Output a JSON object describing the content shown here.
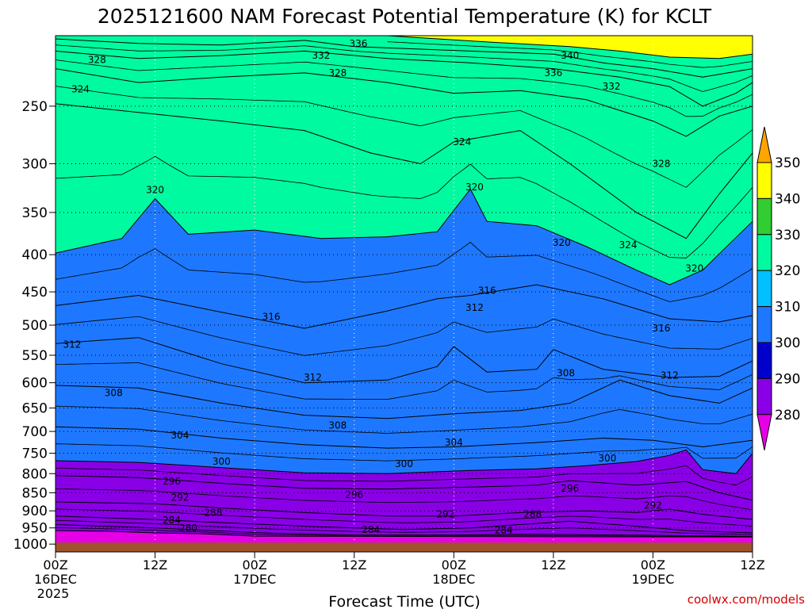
{
  "chart_data": {
    "type": "contour",
    "title": "2025121600 NAM Forecast Potential Temperature (K) for KCLT",
    "xlabel": "Forecast Time (UTC)",
    "ylabel": "",
    "credit": "coolwx.com/models",
    "y_pressure_levels_hpa": [
      250,
      300,
      350,
      400,
      450,
      500,
      550,
      600,
      650,
      700,
      750,
      800,
      850,
      900,
      950,
      1000
    ],
    "ylim_hpa": [
      200,
      1025
    ],
    "y_scale": "log-pressure",
    "x_ticks": [
      {
        "label": "00Z",
        "sub": "16DEC",
        "sub2": "2025",
        "hour": 0
      },
      {
        "label": "12Z",
        "sub": "",
        "sub2": "",
        "hour": 12
      },
      {
        "label": "00Z",
        "sub": "17DEC",
        "sub2": "",
        "hour": 24
      },
      {
        "label": "12Z",
        "sub": "",
        "sub2": "",
        "hour": 36
      },
      {
        "label": "00Z",
        "sub": "18DEC",
        "sub2": "",
        "hour": 48
      },
      {
        "label": "12Z",
        "sub": "",
        "sub2": "",
        "hour": 60
      },
      {
        "label": "00Z",
        "sub": "19DEC",
        "sub2": "",
        "hour": 72
      },
      {
        "label": "12Z",
        "sub": "",
        "sub2": "",
        "hour": 84
      }
    ],
    "xlim_hours": [
      0,
      84
    ],
    "grid": true,
    "colorbar": {
      "ticks": [
        "280",
        "290",
        "300",
        "310",
        "320",
        "330",
        "340",
        "350"
      ],
      "bins": [
        {
          "from": 270,
          "to": 280,
          "color": "#e600e6"
        },
        {
          "from": 280,
          "to": 290,
          "color": "#8a00e6"
        },
        {
          "from": 290,
          "to": 300,
          "color": "#0000cd"
        },
        {
          "from": 300,
          "to": 310,
          "color": "#1e78ff"
        },
        {
          "from": 310,
          "to": 320,
          "color": "#00c0ff"
        },
        {
          "from": 320,
          "to": 330,
          "color": "#00faa0"
        },
        {
          "from": 330,
          "to": 340,
          "color": "#32cd32"
        },
        {
          "from": 340,
          "to": 350,
          "color": "#ffff00"
        },
        {
          "from": 350,
          "to": 360,
          "color": "#ffa500"
        }
      ],
      "placement": "right"
    },
    "ground_color": "#a0522d",
    "fill_levels": [
      280,
      290,
      300,
      310,
      320,
      330,
      340,
      350
    ],
    "isotherms": [
      {
        "theta": 280,
        "label": "280",
        "pts": [
          [
            0,
            958
          ],
          [
            6,
            960
          ],
          [
            12,
            965
          ],
          [
            18,
            968
          ],
          [
            24,
            975
          ],
          [
            84,
            978
          ]
        ]
      },
      {
        "theta": 284,
        "label": "284",
        "pts": [
          [
            0,
            940
          ],
          [
            12,
            950
          ],
          [
            18,
            957
          ],
          [
            26,
            966
          ],
          [
            36,
            972
          ],
          [
            48,
            972
          ],
          [
            56,
            969
          ],
          [
            70,
            972
          ],
          [
            84,
            976
          ]
        ]
      },
      {
        "theta": 288,
        "label": "288",
        "pts": [
          [
            0,
            915
          ],
          [
            12,
            925
          ],
          [
            18,
            932
          ],
          [
            30,
            945
          ],
          [
            42,
            955
          ],
          [
            50,
            950
          ],
          [
            56,
            940
          ],
          [
            62,
            930
          ],
          [
            70,
            945
          ],
          [
            76,
            958
          ],
          [
            84,
            965
          ]
        ]
      },
      {
        "theta": 292,
        "label": "292",
        "pts": [
          [
            0,
            875
          ],
          [
            12,
            880
          ],
          [
            20,
            892
          ],
          [
            30,
            905
          ],
          [
            40,
            915
          ],
          [
            48,
            915
          ],
          [
            56,
            905
          ],
          [
            64,
            900
          ],
          [
            70,
            905
          ],
          [
            74,
            895
          ],
          [
            78,
            910
          ],
          [
            84,
            925
          ]
        ]
      },
      {
        "theta": 296,
        "label": "296",
        "pts": [
          [
            0,
            805
          ],
          [
            10,
            810
          ],
          [
            20,
            825
          ],
          [
            30,
            838
          ],
          [
            40,
            840
          ],
          [
            50,
            835
          ],
          [
            58,
            830
          ],
          [
            62,
            818
          ],
          [
            70,
            830
          ],
          [
            76,
            820
          ],
          [
            80,
            850
          ],
          [
            84,
            870
          ]
        ]
      },
      {
        "theta": 300,
        "label": "300",
        "pts": [
          [
            0,
            768
          ],
          [
            10,
            772
          ],
          [
            20,
            785
          ],
          [
            30,
            798
          ],
          [
            40,
            800
          ],
          [
            50,
            792
          ],
          [
            58,
            788
          ],
          [
            64,
            780
          ],
          [
            70,
            770
          ],
          [
            74,
            755
          ],
          [
            76,
            742
          ],
          [
            78,
            790
          ],
          [
            82,
            800
          ],
          [
            84,
            750
          ]
        ]
      },
      {
        "theta": 304,
        "label": "304",
        "pts": [
          [
            0,
            690
          ],
          [
            10,
            695
          ],
          [
            20,
            715
          ],
          [
            30,
            730
          ],
          [
            40,
            738
          ],
          [
            48,
            735
          ],
          [
            58,
            725
          ],
          [
            66,
            715
          ],
          [
            72,
            720
          ],
          [
            78,
            735
          ],
          [
            84,
            720
          ]
        ]
      },
      {
        "theta": 308,
        "label": "308",
        "pts": [
          [
            0,
            605
          ],
          [
            10,
            610
          ],
          [
            20,
            640
          ],
          [
            30,
            665
          ],
          [
            40,
            672
          ],
          [
            48,
            662
          ],
          [
            56,
            655
          ],
          [
            62,
            640
          ],
          [
            68,
            595
          ],
          [
            74,
            625
          ],
          [
            80,
            640
          ],
          [
            84,
            610
          ]
        ]
      },
      {
        "theta": 312,
        "label": "312",
        "pts": [
          [
            0,
            530
          ],
          [
            10,
            520
          ],
          [
            20,
            565
          ],
          [
            30,
            600
          ],
          [
            40,
            595
          ],
          [
            46,
            570
          ],
          [
            48,
            535
          ],
          [
            52,
            580
          ],
          [
            58,
            575
          ],
          [
            60,
            540
          ],
          [
            66,
            575
          ],
          [
            74,
            590
          ],
          [
            80,
            588
          ],
          [
            84,
            560
          ]
        ]
      },
      {
        "theta": 316,
        "label": "316",
        "pts": [
          [
            0,
            470
          ],
          [
            10,
            455
          ],
          [
            20,
            480
          ],
          [
            30,
            505
          ],
          [
            40,
            478
          ],
          [
            46,
            460
          ],
          [
            50,
            455
          ],
          [
            58,
            440
          ],
          [
            66,
            460
          ],
          [
            74,
            490
          ],
          [
            80,
            495
          ],
          [
            84,
            485
          ]
        ]
      },
      {
        "theta": 320,
        "label": "320",
        "pts": [
          [
            0,
            398
          ],
          [
            8,
            380
          ],
          [
            12,
            335
          ],
          [
            16,
            375
          ],
          [
            24,
            370
          ],
          [
            32,
            380
          ],
          [
            40,
            378
          ],
          [
            46,
            372
          ],
          [
            50,
            325
          ],
          [
            52,
            360
          ],
          [
            58,
            365
          ],
          [
            64,
            390
          ],
          [
            70,
            420
          ],
          [
            74,
            440
          ],
          [
            78,
            420
          ],
          [
            84,
            360
          ]
        ]
      },
      {
        "theta": 324,
        "label": "324",
        "pts": [
          [
            0,
            248
          ],
          [
            10,
            255
          ],
          [
            20,
            262
          ],
          [
            30,
            270
          ],
          [
            38,
            290
          ],
          [
            44,
            300
          ],
          [
            48,
            280
          ],
          [
            56,
            270
          ],
          [
            62,
            300
          ],
          [
            70,
            350
          ],
          [
            76,
            380
          ],
          [
            80,
            330
          ],
          [
            84,
            290
          ]
        ]
      },
      {
        "theta": 328,
        "label": "328",
        "pts": [
          [
            0,
            222
          ],
          [
            10,
            232
          ],
          [
            20,
            228
          ],
          [
            30,
            225
          ],
          [
            40,
            232
          ],
          [
            48,
            240
          ],
          [
            56,
            238
          ],
          [
            64,
            245
          ],
          [
            72,
            262
          ],
          [
            76,
            275
          ],
          [
            80,
            258
          ],
          [
            84,
            250
          ]
        ]
      },
      {
        "theta": 332,
        "label": "332",
        "pts": [
          [
            0,
            210
          ],
          [
            10,
            215
          ],
          [
            20,
            213
          ],
          [
            30,
            210
          ],
          [
            40,
            215
          ],
          [
            50,
            218
          ],
          [
            60,
            222
          ],
          [
            68,
            228
          ],
          [
            74,
            235
          ],
          [
            78,
            250
          ],
          [
            82,
            240
          ],
          [
            84,
            232
          ]
        ]
      },
      {
        "theta": 336,
        "label": "336",
        "pts": [
          [
            0,
            202
          ],
          [
            10,
            205
          ],
          [
            20,
            206
          ],
          [
            30,
            203
          ],
          [
            36,
            207
          ],
          [
            50,
            210
          ],
          [
            60,
            212
          ],
          [
            66,
            218
          ],
          [
            72,
            222
          ],
          [
            78,
            228
          ],
          [
            84,
            222
          ]
        ]
      },
      {
        "theta": 340,
        "label": "340",
        "pts": [
          [
            40,
            200
          ],
          [
            52,
            204
          ],
          [
            62,
            207
          ],
          [
            68,
            210
          ],
          [
            74,
            214
          ],
          [
            80,
            215
          ],
          [
            84,
            212
          ]
        ]
      }
    ],
    "contour_labels": [
      {
        "text": "336",
        "hour": 36.5,
        "p": 205
      },
      {
        "text": "332",
        "hour": 32,
        "p": 213
      },
      {
        "text": "328",
        "hour": 5,
        "p": 216
      },
      {
        "text": "328",
        "hour": 34,
        "p": 225
      },
      {
        "text": "340",
        "hour": 62,
        "p": 213
      },
      {
        "text": "336",
        "hour": 60,
        "p": 225
      },
      {
        "text": "332",
        "hour": 67,
        "p": 235
      },
      {
        "text": "324",
        "hour": 3,
        "p": 237
      },
      {
        "text": "324",
        "hour": 49,
        "p": 280
      },
      {
        "text": "328",
        "hour": 73,
        "p": 300
      },
      {
        "text": "320",
        "hour": 12,
        "p": 326
      },
      {
        "text": "320",
        "hour": 50.5,
        "p": 323
      },
      {
        "text": "320",
        "hour": 61,
        "p": 385
      },
      {
        "text": "324",
        "hour": 69,
        "p": 388
      },
      {
        "text": "320",
        "hour": 77,
        "p": 418
      },
      {
        "text": "316",
        "hour": 26,
        "p": 487
      },
      {
        "text": "316",
        "hour": 52,
        "p": 448
      },
      {
        "text": "312",
        "hour": 50.5,
        "p": 473
      },
      {
        "text": "316",
        "hour": 73,
        "p": 505
      },
      {
        "text": "312",
        "hour": 2,
        "p": 532
      },
      {
        "text": "312",
        "hour": 31,
        "p": 590
      },
      {
        "text": "308",
        "hour": 61.5,
        "p": 582
      },
      {
        "text": "312",
        "hour": 74,
        "p": 586
      },
      {
        "text": "308",
        "hour": 7,
        "p": 620
      },
      {
        "text": "308",
        "hour": 34,
        "p": 687
      },
      {
        "text": "304",
        "hour": 15,
        "p": 709
      },
      {
        "text": "304",
        "hour": 48,
        "p": 725
      },
      {
        "text": "300",
        "hour": 20,
        "p": 770
      },
      {
        "text": "300",
        "hour": 42,
        "p": 776
      },
      {
        "text": "300",
        "hour": 66.5,
        "p": 762
      },
      {
        "text": "296",
        "hour": 14,
        "p": 820
      },
      {
        "text": "296",
        "hour": 36,
        "p": 855
      },
      {
        "text": "296",
        "hour": 62,
        "p": 838
      },
      {
        "text": "292",
        "hour": 15,
        "p": 863
      },
      {
        "text": "292",
        "hour": 47,
        "p": 910
      },
      {
        "text": "292",
        "hour": 72,
        "p": 885
      },
      {
        "text": "288",
        "hour": 19,
        "p": 905
      },
      {
        "text": "288",
        "hour": 57.5,
        "p": 910
      },
      {
        "text": "284",
        "hour": 14,
        "p": 927
      },
      {
        "text": "284",
        "hour": 38,
        "p": 955
      },
      {
        "text": "284",
        "hour": 54,
        "p": 957
      },
      {
        "text": "280",
        "hour": 16,
        "p": 951
      }
    ]
  }
}
